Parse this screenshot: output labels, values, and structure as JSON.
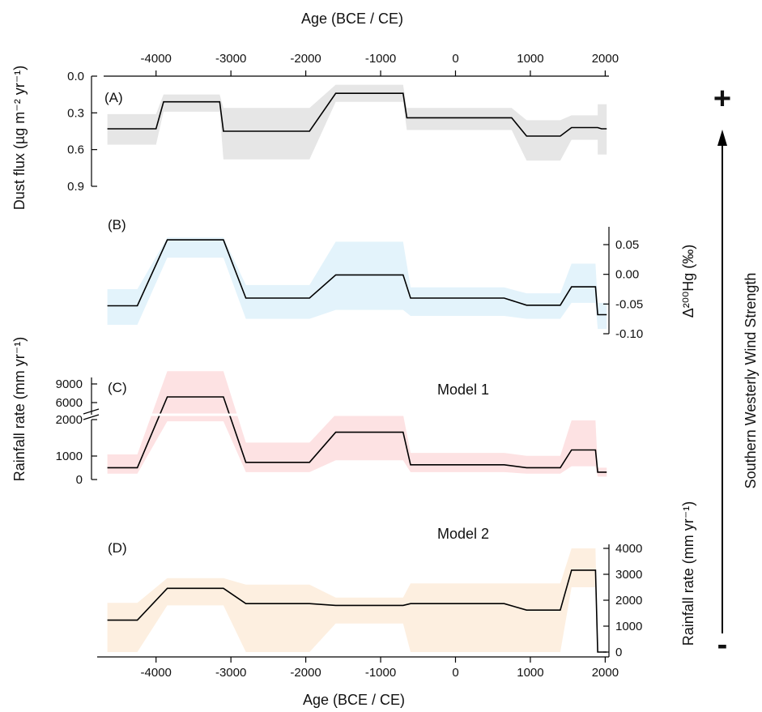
{
  "figure": {
    "top_xlabel": "Age (BCE / CE)",
    "bottom_xlabel": "Age (BCE / CE)",
    "right_label": "Southern Westerly Wind Strength",
    "plus_label": "+",
    "minus_label": "-"
  },
  "chart_data": [
    {
      "type": "line",
      "panel": "(A)",
      "ylabel": "Dust flux (µg m⁻² yr⁻¹)",
      "ylim": [
        0.9,
        0.0
      ],
      "yticks": [
        "0.0",
        "0.3",
        "0.6",
        "0.9"
      ],
      "x_ticks": [
        "-4000",
        "-3000",
        "-2000",
        "-1000",
        "0",
        "1000",
        "2000"
      ],
      "xlim": [
        -4700,
        2050
      ],
      "series": [
        {
          "color": "#000000",
          "points": [
            [
              -4650,
              0.43
            ],
            [
              -4000,
              0.43
            ],
            [
              -3900,
              0.21
            ],
            [
              -3150,
              0.21
            ],
            [
              -3100,
              0.45
            ],
            [
              -1950,
              0.45
            ],
            [
              -1600,
              0.14
            ],
            [
              -700,
              0.14
            ],
            [
              -650,
              0.34
            ],
            [
              750,
              0.34
            ],
            [
              950,
              0.49
            ],
            [
              1400,
              0.49
            ],
            [
              1550,
              0.42
            ],
            [
              1900,
              0.42
            ],
            [
              1950,
              0.43
            ],
            [
              2020,
              0.43
            ]
          ],
          "band": [
            [
              -4650,
              0.31,
              0.56
            ],
            [
              -4000,
              0.31,
              0.56
            ],
            [
              -3900,
              0.15,
              0.29
            ],
            [
              -3150,
              0.15,
              0.29
            ],
            [
              -3100,
              0.26,
              0.68
            ],
            [
              -1950,
              0.26,
              0.68
            ],
            [
              -1600,
              0.07,
              0.21
            ],
            [
              -700,
              0.07,
              0.21
            ],
            [
              -650,
              0.26,
              0.44
            ],
            [
              750,
              0.26,
              0.44
            ],
            [
              950,
              0.36,
              0.69
            ],
            [
              1400,
              0.36,
              0.69
            ],
            [
              1550,
              0.32,
              0.52
            ],
            [
              1900,
              0.32,
              0.52
            ],
            [
              1900,
              0.23,
              0.64
            ],
            [
              2020,
              0.23,
              0.64
            ]
          ],
          "band_color": "#e6e6e6"
        }
      ]
    },
    {
      "type": "line",
      "panel": "(B)",
      "ylabel": "Δ²⁰⁰Hg (‰)",
      "ylim": [
        -0.1,
        0.08
      ],
      "yticks": [
        "0.05",
        "0.00",
        "-0.05",
        "-0.10"
      ],
      "series": [
        {
          "color": "#000000",
          "points": [
            [
              -4650,
              -0.053
            ],
            [
              -4250,
              -0.053
            ],
            [
              -3850,
              0.058
            ],
            [
              -3100,
              0.058
            ],
            [
              -2800,
              -0.04
            ],
            [
              -1950,
              -0.04
            ],
            [
              -1600,
              -0.001
            ],
            [
              -700,
              -0.001
            ],
            [
              -600,
              -0.04
            ],
            [
              650,
              -0.04
            ],
            [
              950,
              -0.052
            ],
            [
              1400,
              -0.052
            ],
            [
              1550,
              -0.021
            ],
            [
              1870,
              -0.021
            ],
            [
              1900,
              -0.068
            ],
            [
              2020,
              -0.068
            ]
          ],
          "band": [
            [
              -4650,
              -0.085,
              -0.025
            ],
            [
              -4250,
              -0.085,
              -0.025
            ],
            [
              -3850,
              0.028,
              0.062
            ],
            [
              -3100,
              0.028,
              0.062
            ],
            [
              -2800,
              -0.075,
              -0.018
            ],
            [
              -1950,
              -0.075,
              -0.018
            ],
            [
              -1600,
              -0.06,
              0.055
            ],
            [
              -700,
              -0.06,
              0.055
            ],
            [
              -600,
              -0.07,
              -0.022
            ],
            [
              650,
              -0.07,
              -0.022
            ],
            [
              950,
              -0.075,
              -0.032
            ],
            [
              1400,
              -0.075,
              -0.032
            ],
            [
              1550,
              -0.048,
              0.018
            ],
            [
              1870,
              -0.048,
              0.018
            ],
            [
              1900,
              -0.092,
              -0.048
            ],
            [
              2020,
              -0.092,
              -0.048
            ]
          ],
          "band_color": "#e3f3fb"
        }
      ]
    },
    {
      "type": "line",
      "panel": "(C)",
      "annotation": "Model 1",
      "ylabel": "Rainfall rate (mm yr⁻¹)",
      "ylim": [
        0,
        9000
      ],
      "y_axis_break": [
        2000,
        6000
      ],
      "yticks": [
        "0",
        "1000",
        "2000",
        "6000",
        "9000"
      ],
      "series": [
        {
          "color": "#000000",
          "points": [
            [
              -4650,
              400
            ],
            [
              -4250,
              400
            ],
            [
              -3850,
              5700
            ],
            [
              -3100,
              5700
            ],
            [
              -2800,
              580
            ],
            [
              -1950,
              580
            ],
            [
              -1600,
              1600
            ],
            [
              -700,
              1600
            ],
            [
              -600,
              500
            ],
            [
              650,
              500
            ],
            [
              950,
              400
            ],
            [
              1400,
              400
            ],
            [
              1550,
              1000
            ],
            [
              1870,
              1000
            ],
            [
              1900,
              250
            ],
            [
              2020,
              250
            ]
          ],
          "band": [
            [
              -4650,
              200,
              850
            ],
            [
              -4250,
              200,
              850
            ],
            [
              -3850,
              2100,
              9500
            ],
            [
              -3100,
              2100,
              9500
            ],
            [
              -2800,
              250,
              1250
            ],
            [
              -1950,
              250,
              1250
            ],
            [
              -1600,
              650,
              3100
            ],
            [
              -700,
              650,
              3100
            ],
            [
              -600,
              250,
              900
            ],
            [
              650,
              250,
              900
            ],
            [
              950,
              200,
              800
            ],
            [
              1400,
              200,
              800
            ],
            [
              1550,
              450,
              2000
            ],
            [
              1870,
              450,
              2000
            ],
            [
              1900,
              100,
              400
            ],
            [
              2020,
              100,
              400
            ]
          ],
          "band_color": "#fde2e3"
        }
      ]
    },
    {
      "type": "line",
      "panel": "(D)",
      "annotation": "Model 2",
      "ylabel": "Rainfall rate (mm yr⁻¹)",
      "ylim": [
        0,
        4200
      ],
      "yticks": [
        "4000",
        "3000",
        "2000",
        "1000",
        "0"
      ],
      "series": [
        {
          "color": "#000000",
          "points": [
            [
              -4650,
              1230
            ],
            [
              -4250,
              1230
            ],
            [
              -3850,
              2460
            ],
            [
              -3100,
              2460
            ],
            [
              -2800,
              1870
            ],
            [
              -1950,
              1870
            ],
            [
              -1600,
              1800
            ],
            [
              -700,
              1800
            ],
            [
              -600,
              1870
            ],
            [
              650,
              1870
            ],
            [
              950,
              1620
            ],
            [
              1400,
              1620
            ],
            [
              1550,
              3160
            ],
            [
              1870,
              3160
            ],
            [
              1900,
              0
            ],
            [
              2020,
              0
            ]
          ],
          "band": [
            [
              -4650,
              0,
              1900
            ],
            [
              -4250,
              0,
              1900
            ],
            [
              -3850,
              1800,
              2850
            ],
            [
              -3100,
              1800,
              2850
            ],
            [
              -2800,
              0,
              2600
            ],
            [
              -1950,
              0,
              2600
            ],
            [
              -1600,
              1100,
              2100
            ],
            [
              -700,
              1100,
              2100
            ],
            [
              -600,
              0,
              2650
            ],
            [
              650,
              0,
              2650
            ],
            [
              950,
              0,
              2650
            ],
            [
              1400,
              0,
              2650
            ],
            [
              1550,
              2500,
              4000
            ],
            [
              1870,
              2500,
              4000
            ],
            [
              1900,
              0,
              0
            ],
            [
              2020,
              0,
              0
            ]
          ],
          "band_color": "#fdefe0"
        }
      ]
    }
  ]
}
